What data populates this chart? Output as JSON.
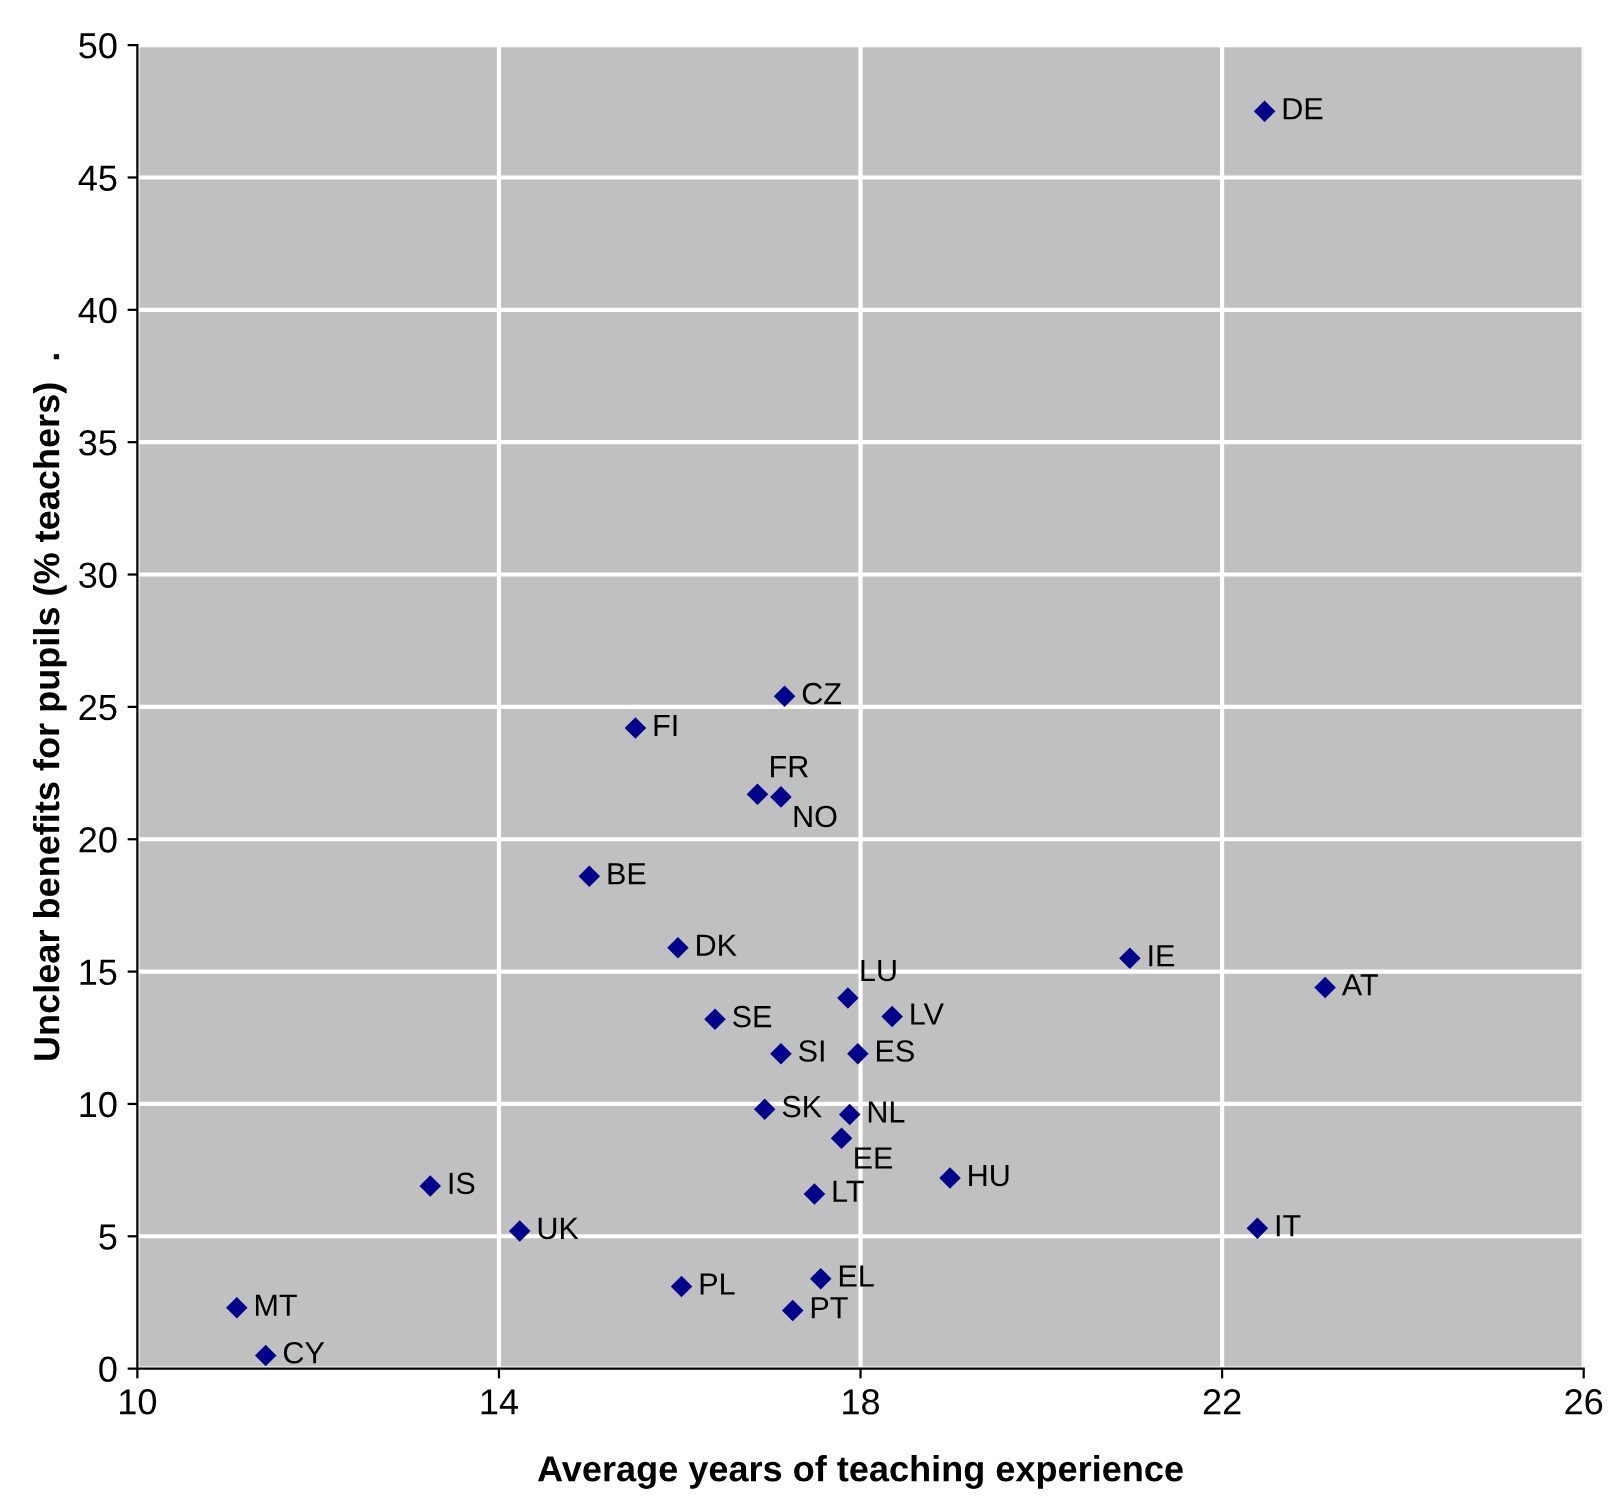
{
  "chart_data": {
    "type": "scatter",
    "xlabel": "Average years of teaching experience",
    "ylabel": "Unclear benefits for pupils (% teachers)  .",
    "xlim": [
      10,
      26
    ],
    "xticks": [
      10,
      14,
      18,
      22,
      26
    ],
    "ylim": [
      0,
      50
    ],
    "yticks": [
      0,
      5,
      10,
      15,
      20,
      25,
      30,
      35,
      40,
      45,
      50
    ],
    "grid": true,
    "marker": "diamond",
    "series": [
      {
        "color": "#00008b",
        "x": [
          22.47,
          17.16,
          15.51,
          16.86,
          17.12,
          15.0,
          15.98,
          20.98,
          23.14,
          17.86,
          16.39,
          18.35,
          17.12,
          17.97,
          16.94,
          17.88,
          17.79,
          18.99,
          13.24,
          17.49,
          14.23,
          22.39,
          16.02,
          17.56,
          17.25,
          11.1,
          11.42
        ],
        "values": [
          47.5,
          25.4,
          24.2,
          21.7,
          21.6,
          18.6,
          15.9,
          15.5,
          14.4,
          14.0,
          13.2,
          13.3,
          11.9,
          11.9,
          9.8,
          9.6,
          8.7,
          7.2,
          6.9,
          6.6,
          5.2,
          5.3,
          3.1,
          3.4,
          2.2,
          2.3,
          0.5
        ]
      }
    ],
    "annotations": [
      {
        "text": "DE",
        "x": 22.47,
        "y": 47.5
      },
      {
        "text": "CZ",
        "x": 17.16,
        "y": 25.4
      },
      {
        "text": "FI",
        "x": 15.51,
        "y": 24.2
      },
      {
        "text": "FR",
        "x": 16.86,
        "y": 21.7
      },
      {
        "text": "NO",
        "x": 17.12,
        "y": 21.6
      },
      {
        "text": "BE",
        "x": 15.0,
        "y": 18.6
      },
      {
        "text": "DK",
        "x": 15.98,
        "y": 15.9
      },
      {
        "text": "IE",
        "x": 20.98,
        "y": 15.5
      },
      {
        "text": "AT",
        "x": 23.14,
        "y": 14.4
      },
      {
        "text": "LU",
        "x": 17.86,
        "y": 14.0
      },
      {
        "text": "SE",
        "x": 16.39,
        "y": 13.2
      },
      {
        "text": "LV",
        "x": 18.35,
        "y": 13.3
      },
      {
        "text": "SI",
        "x": 17.12,
        "y": 11.9
      },
      {
        "text": "ES",
        "x": 17.97,
        "y": 11.9
      },
      {
        "text": "SK",
        "x": 16.94,
        "y": 9.8
      },
      {
        "text": "NL",
        "x": 17.88,
        "y": 9.6
      },
      {
        "text": "EE",
        "x": 17.79,
        "y": 8.7
      },
      {
        "text": "HU",
        "x": 18.99,
        "y": 7.2
      },
      {
        "text": "IS",
        "x": 13.24,
        "y": 6.9
      },
      {
        "text": "LT",
        "x": 17.49,
        "y": 6.6
      },
      {
        "text": "UK",
        "x": 14.23,
        "y": 5.2
      },
      {
        "text": "IT",
        "x": 22.39,
        "y": 5.3
      },
      {
        "text": "PL",
        "x": 16.02,
        "y": 3.1
      },
      {
        "text": "EL",
        "x": 17.56,
        "y": 3.4
      },
      {
        "text": "PT",
        "x": 17.25,
        "y": 2.2
      },
      {
        "text": "MT",
        "x": 11.1,
        "y": 2.3
      },
      {
        "text": "CY",
        "x": 11.42,
        "y": 0.5
      }
    ]
  }
}
